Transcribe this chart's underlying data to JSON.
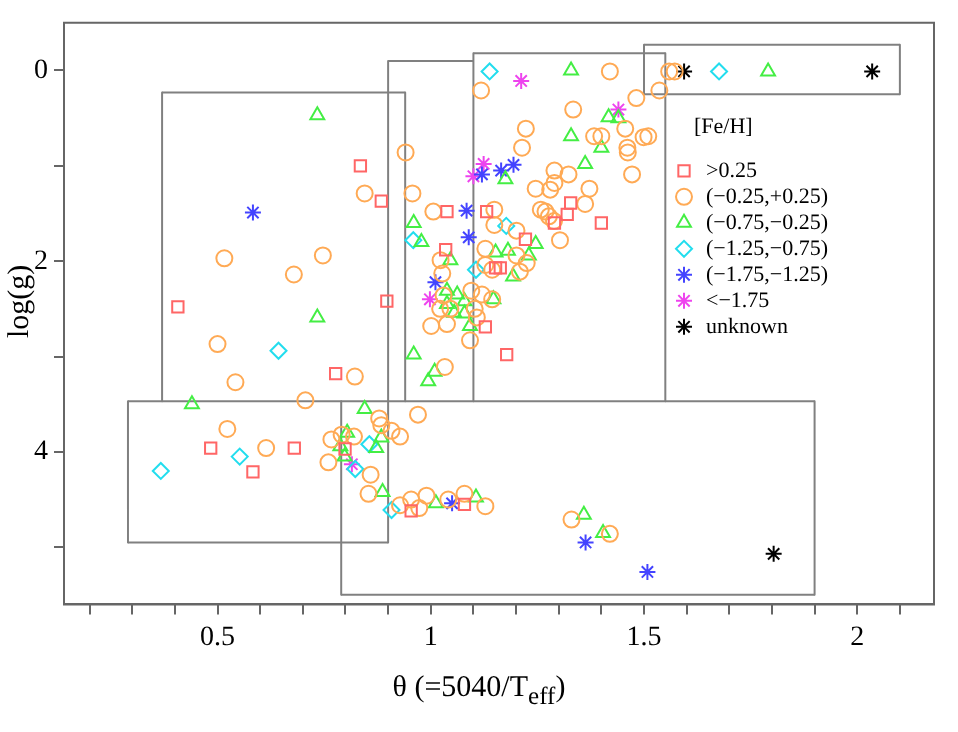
{
  "chart_data": {
    "type": "scatter",
    "xlabel": "θ (=5040/T$_{eff}$)",
    "ylabel": "log(g)",
    "legend_title": "[Fe/H]",
    "legend": "top right",
    "xlim": [
      0.14,
      2.18
    ],
    "ylim": [
      5.6,
      -0.5
    ],
    "xticks": [
      {
        "value": 0.2,
        "label": null
      },
      {
        "value": 0.3,
        "label": null
      },
      {
        "value": 0.4,
        "label": null
      },
      0.5,
      {
        "value": 0.6,
        "label": null
      },
      {
        "value": 0.7,
        "label": null
      },
      {
        "value": 0.8,
        "label": null
      },
      {
        "value": 0.9,
        "label": null
      },
      {
        "value": 1,
        "label": "1"
      },
      {
        "value": 1.1,
        "label": null
      },
      {
        "value": 1.2,
        "label": null
      },
      {
        "value": 1.3,
        "label": null
      },
      {
        "value": 1.4,
        "label": null
      },
      1.5,
      {
        "value": 1.6,
        "label": null
      },
      {
        "value": 1.7,
        "label": null
      },
      {
        "value": 1.8,
        "label": null
      },
      {
        "value": 1.9,
        "label": null
      },
      {
        "value": 2,
        "label": "2"
      },
      {
        "value": 2.1,
        "label": null
      }
    ],
    "yticks": [
      0,
      {
        "value": 1,
        "label": null
      },
      2,
      {
        "value": 3,
        "label": null
      },
      4,
      {
        "value": 5,
        "label": null
      }
    ],
    "series": [
      {
        "name": ">0.25",
        "marker": "square",
        "color": "#ff6666",
        "x": [
          0.835,
          0.884,
          0.407,
          0.897,
          0.777,
          0.484,
          0.68,
          0.583,
          0.799,
          0.954,
          1.079,
          1.178,
          1.128,
          1.328,
          1.038,
          1.131,
          1.32,
          1.29,
          1.4,
          1.222,
          1.035,
          1.152,
          1.163
        ],
        "values": [
          1.0,
          1.37,
          2.48,
          2.42,
          3.18,
          3.96,
          3.96,
          4.21,
          3.97,
          4.62,
          4.55,
          2.98,
          2.69,
          1.39,
          1.48,
          1.48,
          1.51,
          1.6,
          1.6,
          1.77,
          1.88,
          2.07,
          2.07
        ]
      },
      {
        "name": "(−0.25,+0.25)",
        "marker": "circle",
        "color": "#ffaa55",
        "x": [
          0.845,
          0.516,
          0.747,
          0.679,
          0.5,
          0.542,
          0.822,
          0.706,
          0.523,
          0.614,
          0.767,
          0.791,
          0.82,
          0.76,
          0.859,
          0.854,
          0.879,
          1.033,
          0.97,
          0.884,
          0.908,
          0.928,
          0.928,
          0.954,
          0.973,
          0.99,
          1.041,
          1.079,
          1.128,
          1.33,
          1.42,
          1.108,
          1.001,
          1.038,
          1.092,
          1.42,
          1.118,
          1.334,
          1.482,
          1.456,
          1.223,
          1.383,
          1.4,
          1.499,
          1.461,
          1.462,
          1.214,
          0.941,
          1.29,
          1.323,
          1.472,
          1.246,
          1.28,
          1.29,
          1.372,
          0.957,
          1.362,
          1.006,
          1.149,
          1.258,
          1.269,
          1.277,
          1.289,
          1.149,
          1.201,
          1.303,
          1.128,
          1.201,
          1.023,
          1.128,
          1.144,
          1.225,
          1.027,
          1.209,
          1.095,
          1.12,
          1.144,
          1.03,
          1.022,
          1.046,
          1.103,
          1.559,
          1.572,
          1.536,
          1.51
        ],
        "values": [
          1.29,
          1.97,
          1.94,
          2.14,
          2.87,
          3.27,
          3.21,
          3.46,
          3.76,
          3.96,
          3.87,
          3.82,
          3.84,
          4.11,
          4.24,
          4.44,
          3.65,
          3.11,
          3.61,
          3.72,
          3.78,
          3.84,
          4.56,
          4.5,
          4.59,
          4.46,
          4.5,
          4.44,
          4.57,
          4.71,
          4.86,
          2.59,
          2.68,
          2.66,
          2.83,
          0.01,
          0.21,
          0.41,
          0.29,
          0.61,
          0.61,
          0.69,
          0.69,
          0.7,
          0.81,
          0.86,
          0.81,
          0.86,
          1.05,
          1.09,
          1.09,
          1.24,
          1.25,
          1.18,
          1.24,
          1.29,
          1.4,
          1.48,
          1.46,
          1.46,
          1.48,
          1.53,
          1.58,
          1.62,
          1.68,
          1.78,
          1.87,
          1.94,
          1.99,
          2.04,
          2.09,
          2.02,
          2.13,
          2.11,
          2.31,
          2.35,
          2.4,
          2.36,
          2.5,
          2.5,
          2.5,
          0.01,
          0.01,
          0.21,
          0.69
        ]
      },
      {
        "name": "(−0.75,−0.25)",
        "marker": "triangle",
        "color": "#44ee44",
        "x": [
          0.734,
          0.734,
          0.44,
          0.845,
          0.804,
          0.788,
          0.798,
          0.872,
          0.884,
          0.887,
          0.96,
          1.009,
          0.994,
          1.012,
          1.106,
          1.359,
          1.404,
          1.092,
          1.329,
          1.417,
          1.44,
          1.329,
          1.4,
          1.362,
          1.175,
          0.96,
          0.978,
          1.246,
          1.152,
          1.181,
          1.23,
          1.046,
          1.193,
          1.038,
          1.062,
          1.079,
          1.147,
          1.055,
          1.079,
          1.038,
          1.791
        ],
        "values": [
          0.47,
          2.59,
          3.5,
          3.55,
          3.8,
          3.94,
          4.05,
          3.96,
          3.85,
          4.42,
          2.98,
          3.16,
          3.26,
          4.54,
          4.48,
          4.66,
          4.85,
          2.68,
          0.0,
          0.49,
          0.5,
          0.69,
          0.81,
          0.98,
          1.14,
          1.6,
          1.8,
          1.82,
          1.91,
          1.89,
          1.94,
          1.99,
          2.16,
          2.31,
          2.35,
          2.42,
          2.4,
          2.54,
          2.55,
          2.45,
          0.01
        ]
      },
      {
        "name": "(−1.25,−0.75)",
        "marker": "diamond",
        "color": "#22ddee",
        "x": [
          0.643,
          0.552,
          0.367,
          0.823,
          0.856,
          0.908,
          1.138,
          1.177,
          0.959,
          1.106,
          1.676
        ],
        "values": [
          2.94,
          4.05,
          4.2,
          4.18,
          3.92,
          4.61,
          0.01,
          1.63,
          1.78,
          2.09,
          0.01
        ]
      },
      {
        "name": "(−1.75,−1.25)",
        "marker": "cross",
        "color": "#4444ff",
        "x": [
          0.583,
          1.05,
          1.363,
          1.508,
          1.12,
          1.165,
          1.194,
          1.084,
          1.089,
          1.011
        ],
        "values": [
          1.49,
          4.54,
          4.95,
          5.26,
          1.09,
          1.05,
          0.99,
          1.47,
          1.75,
          2.22
        ]
      },
      {
        "name": "<−1.75",
        "marker": "cross",
        "color": "#ee44ee",
        "x": [
          0.815,
          1.212,
          1.44,
          1.124,
          1.1,
          0.998
        ],
        "values": [
          4.13,
          0.11,
          0.41,
          0.98,
          1.11,
          2.4
        ]
      },
      {
        "name": "unknown",
        "marker": "cross",
        "color": "#000000",
        "x": [
          1.804,
          1.594,
          2.035
        ],
        "values": [
          5.07,
          0.01,
          0.01
        ]
      },
      {
        "type": "line",
        "marker": "none",
        "line_style": "solid",
        "color": "#808080",
        "x": [
          0.37,
          0.94
        ],
        "values": [
          0.23,
          0.23
        ]
      },
      {
        "type": "line",
        "marker": "none",
        "line_style": "solid",
        "color": "#808080",
        "x": [
          0.29,
          1.9
        ],
        "values": [
          3.47,
          3.47
        ]
      },
      {
        "type": "line",
        "marker": "none",
        "line_style": "solid",
        "color": "#808080",
        "x": [
          0.37,
          0.37
        ],
        "values": [
          0.23,
          3.47
        ]
      },
      {
        "type": "line",
        "marker": "none",
        "line_style": "solid",
        "color": "#808080",
        "x": [
          0.94,
          0.94
        ],
        "values": [
          0.23,
          3.47
        ]
      },
      {
        "type": "line",
        "marker": "none",
        "line_style": "solid",
        "color": "#808080",
        "x": [
          0.9,
          1.1
        ],
        "values": [
          -0.1,
          -0.1
        ]
      },
      {
        "type": "line",
        "marker": "none",
        "line_style": "solid",
        "color": "#808080",
        "x": [
          0.9,
          0.9
        ],
        "values": [
          -0.1,
          4.95
        ]
      },
      {
        "type": "line",
        "marker": "none",
        "line_style": "solid",
        "color": "#808080",
        "x": [
          1.1,
          1.55
        ],
        "values": [
          -0.18,
          -0.18
        ]
      },
      {
        "type": "line",
        "marker": "none",
        "line_style": "solid",
        "color": "#808080",
        "x": [
          1.1,
          1.1
        ],
        "values": [
          -0.18,
          3.47
        ]
      },
      {
        "type": "line",
        "marker": "none",
        "line_style": "solid",
        "color": "#808080",
        "x": [
          1.55,
          1.55
        ],
        "values": [
          -0.18,
          3.47
        ]
      },
      {
        "type": "line",
        "marker": "none",
        "line_style": "solid",
        "color": "#808080",
        "x": [
          1.5,
          2.1
        ],
        "values": [
          -0.27,
          -0.27
        ]
      },
      {
        "type": "line",
        "marker": "none",
        "line_style": "solid",
        "color": "#808080",
        "x": [
          1.5,
          2.1
        ],
        "values": [
          0.25,
          0.25
        ]
      },
      {
        "type": "line",
        "marker": "none",
        "line_style": "solid",
        "color": "#808080",
        "x": [
          1.5,
          1.5
        ],
        "values": [
          -0.27,
          0.25
        ]
      },
      {
        "type": "line",
        "marker": "none",
        "line_style": "solid",
        "color": "#808080",
        "x": [
          2.1,
          2.1
        ],
        "values": [
          -0.27,
          0.25
        ]
      },
      {
        "type": "line",
        "marker": "none",
        "line_style": "solid",
        "color": "#808080",
        "x": [
          0.29,
          0.9
        ],
        "values": [
          4.95,
          4.95
        ]
      },
      {
        "type": "line",
        "marker": "none",
        "line_style": "solid",
        "color": "#808080",
        "x": [
          0.29,
          0.29
        ],
        "values": [
          3.47,
          4.95
        ]
      },
      {
        "type": "line",
        "marker": "none",
        "line_style": "solid",
        "color": "#808080",
        "x": [
          0.79,
          1.9
        ],
        "values": [
          5.5,
          5.5
        ]
      },
      {
        "type": "line",
        "marker": "none",
        "line_style": "solid",
        "color": "#808080",
        "x": [
          0.79,
          0.79
        ],
        "values": [
          3.47,
          5.5
        ]
      },
      {
        "type": "line",
        "marker": "none",
        "line_style": "solid",
        "color": "#808080",
        "x": [
          1.9,
          1.9
        ],
        "values": [
          3.47,
          5.5
        ]
      }
    ]
  }
}
